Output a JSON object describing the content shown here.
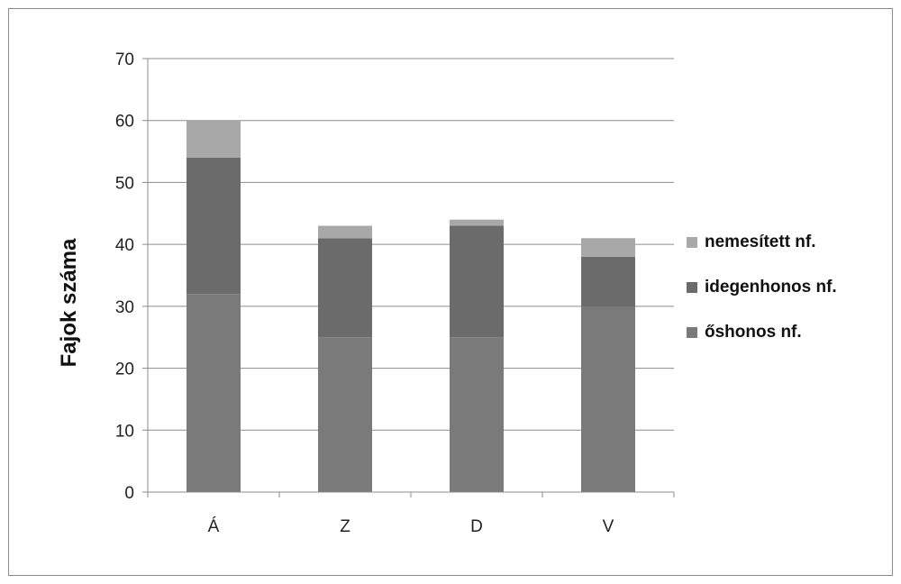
{
  "chart_data": {
    "type": "bar",
    "stacked": true,
    "title": "",
    "xlabel": "",
    "ylabel": "Fajok száma",
    "ylim": [
      0,
      70
    ],
    "yticks": [
      0,
      10,
      20,
      30,
      40,
      50,
      60,
      70
    ],
    "grid": true,
    "legend_position": "right",
    "categories": [
      "Á",
      "Z",
      "D",
      "V"
    ],
    "series": [
      {
        "name": "őshonos nf.",
        "values": [
          32,
          25,
          25,
          30
        ],
        "color": "#7a7a7a"
      },
      {
        "name": "idegenhonos nf.",
        "values": [
          22,
          16,
          18,
          8
        ],
        "color": "#6b6b6b"
      },
      {
        "name": "nemesített nf.",
        "values": [
          6,
          2,
          1,
          3
        ],
        "color": "#a8a8a8"
      }
    ]
  }
}
